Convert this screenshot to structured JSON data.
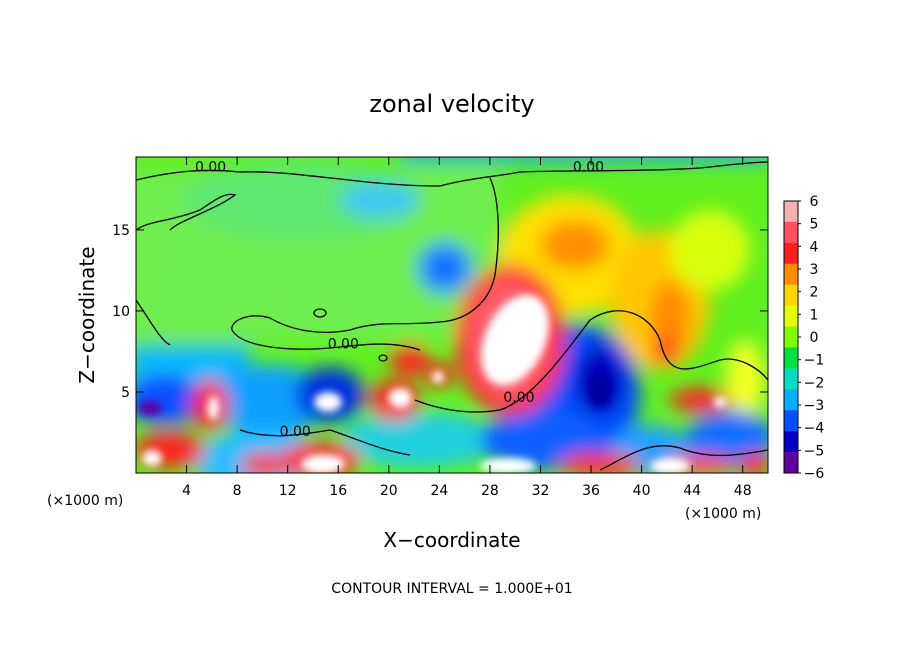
{
  "chart_data": {
    "type": "heatmap",
    "title": "zonal velocity",
    "xlabel": "X−coordinate",
    "ylabel": "Z−coordinate",
    "x_scale_note_left": "(×1000 m)",
    "x_scale_note_right": "(×1000 m)",
    "footer": "CONTOUR INTERVAL = 1.000E+01",
    "xlim": [
      0,
      50
    ],
    "ylim": [
      0,
      19.5
    ],
    "x_ticks": [
      "4",
      "8",
      "12",
      "16",
      "20",
      "24",
      "28",
      "32",
      "36",
      "40",
      "44",
      "48"
    ],
    "y_ticks": [
      "5",
      "10",
      "15"
    ],
    "colorbar": {
      "range": [
        -6,
        6
      ],
      "labels": [
        "6",
        "5",
        "4",
        "3",
        "2",
        "1",
        "0",
        "−1",
        "−2",
        "−3",
        "−4",
        "−5",
        "−6"
      ],
      "colors": [
        "#f7b0b0",
        "#ff5060",
        "#ff1e1e",
        "#ff8c00",
        "#ffd700",
        "#e0ff00",
        "#80ff00",
        "#00e040",
        "#00e0c0",
        "#00b0ff",
        "#0050ff",
        "#0000c8",
        "#6000a0"
      ]
    },
    "contour_labels": [
      {
        "text": "0.00",
        "x": 5.9,
        "y": 18.9
      },
      {
        "text": "0.00",
        "x": 35.8,
        "y": 18.9
      },
      {
        "text": "0.00",
        "x": 16.4,
        "y": 8.0
      },
      {
        "text": "0.00",
        "x": 30.3,
        "y": 4.7
      },
      {
        "text": "0.00",
        "x": 12.6,
        "y": 2.6
      }
    ]
  }
}
